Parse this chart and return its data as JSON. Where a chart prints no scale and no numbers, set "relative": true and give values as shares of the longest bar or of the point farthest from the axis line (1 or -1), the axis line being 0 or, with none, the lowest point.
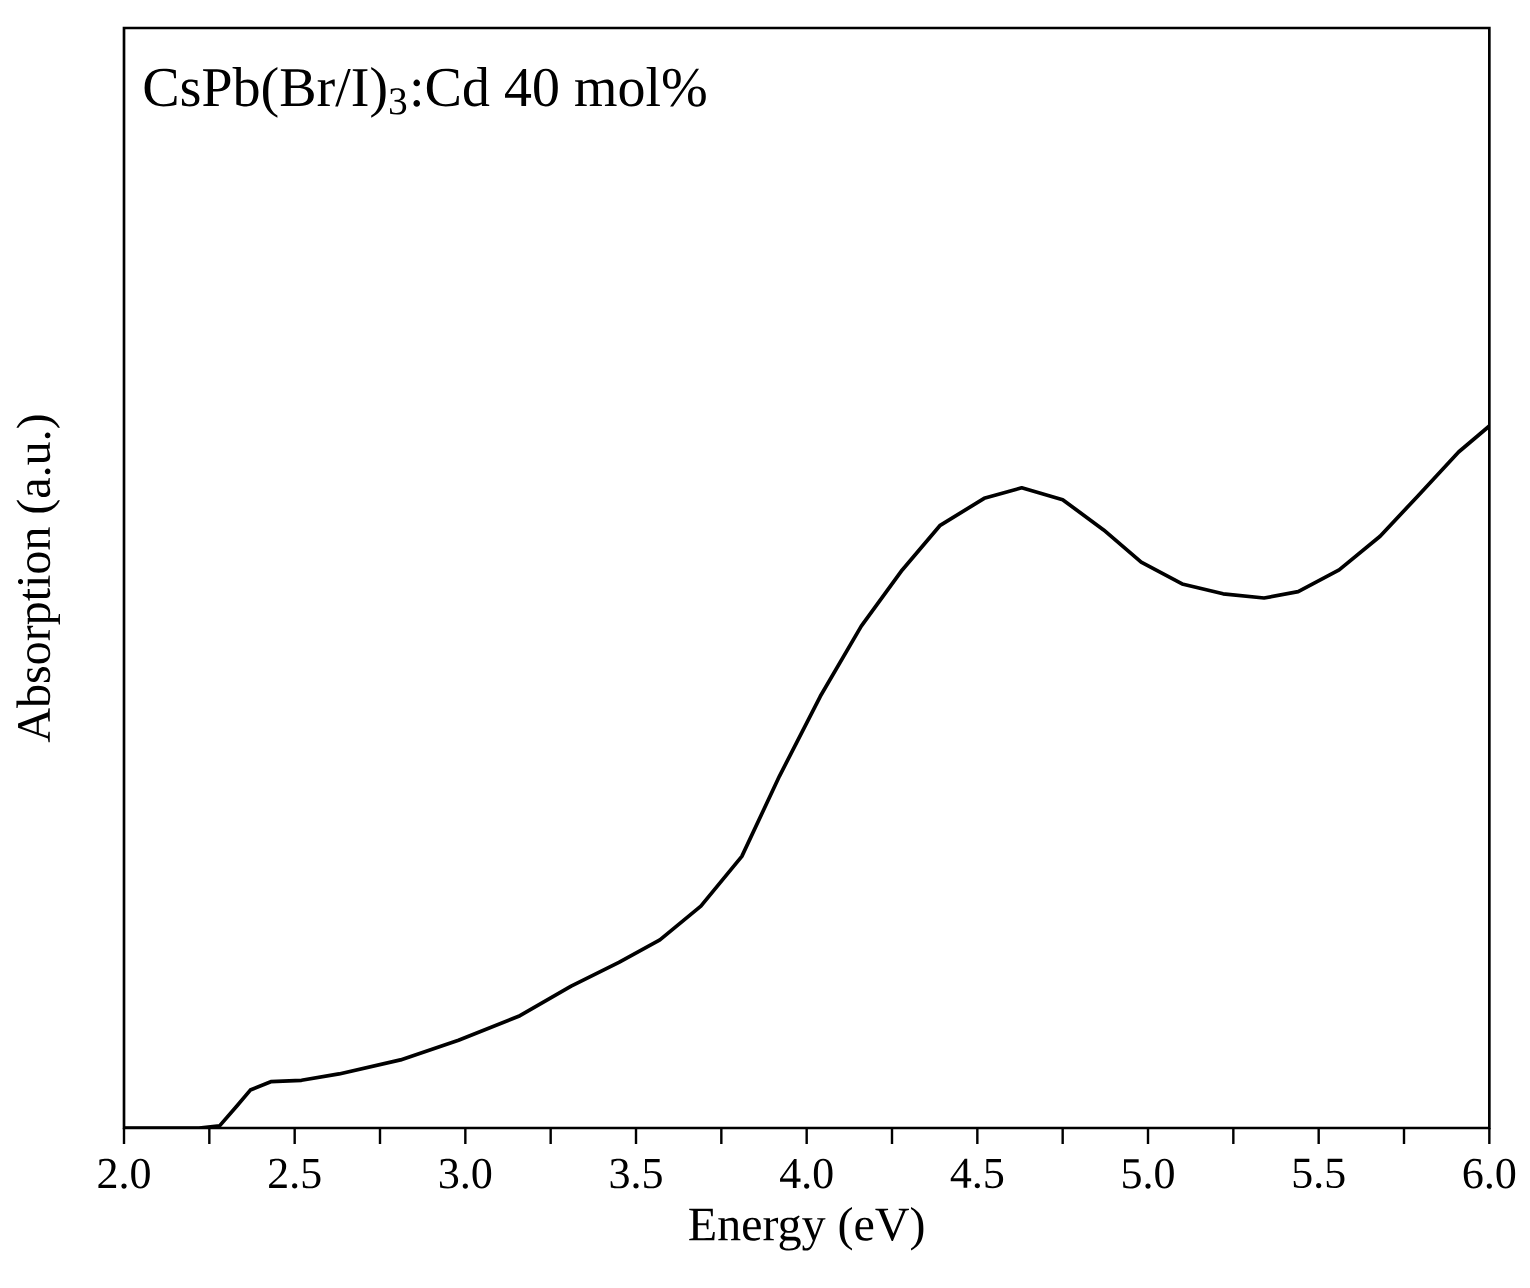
{
  "chart_data": {
    "type": "line",
    "title": "CsPb(Br/I)$_{3}$:Cd 40 mol%",
    "xlabel": "Energy (eV)",
    "ylabel": "Absorption (a.u.)",
    "relative": true,
    "tick_labels": "x",
    "xlim": [
      2.0,
      6.0
    ],
    "xticks": [
      {
        "value": 2.0,
        "label": "2.0"
      },
      {
        "value": 2.25,
        "label": null
      },
      {
        "value": 2.5,
        "label": "2.5"
      },
      {
        "value": 2.75,
        "label": null
      },
      {
        "value": 3.0,
        "label": "3.0"
      },
      {
        "value": 3.25,
        "label": null
      },
      {
        "value": 3.5,
        "label": "3.5"
      },
      {
        "value": 3.75,
        "label": null
      },
      {
        "value": 4.0,
        "label": "4.0"
      },
      {
        "value": 4.25,
        "label": null
      },
      {
        "value": 4.5,
        "label": "4.5"
      },
      {
        "value": 4.75,
        "label": null
      },
      {
        "value": 5.0,
        "label": "5.0"
      },
      {
        "value": 5.25,
        "label": null
      },
      {
        "value": 5.5,
        "label": "5.5"
      },
      {
        "value": 5.75,
        "label": null
      },
      {
        "value": 6.0,
        "label": "6.0"
      }
    ],
    "series": [
      {
        "color": "#000000",
        "line_style": "solid",
        "x": [
          2.0,
          2.22,
          2.28,
          2.33,
          2.37,
          2.43,
          2.52,
          2.63,
          2.81,
          2.98,
          3.16,
          3.31,
          3.45,
          3.57,
          3.69,
          3.81,
          3.92,
          4.04,
          4.16,
          4.28,
          4.39,
          4.52,
          4.63,
          4.75,
          4.87,
          4.98,
          5.1,
          5.22,
          5.34,
          5.44,
          5.56,
          5.68,
          5.79,
          5.91,
          6.0
        ],
        "values": [
          0,
          0,
          0.003,
          0.031,
          0.054,
          0.066,
          0.068,
          0.077,
          0.097,
          0.125,
          0.16,
          0.202,
          0.236,
          0.268,
          0.316,
          0.387,
          0.501,
          0.615,
          0.715,
          0.795,
          0.858,
          0.897,
          0.912,
          0.895,
          0.852,
          0.806,
          0.775,
          0.761,
          0.755,
          0.764,
          0.795,
          0.843,
          0.9,
          0.963,
          1.0
        ]
      }
    ]
  }
}
